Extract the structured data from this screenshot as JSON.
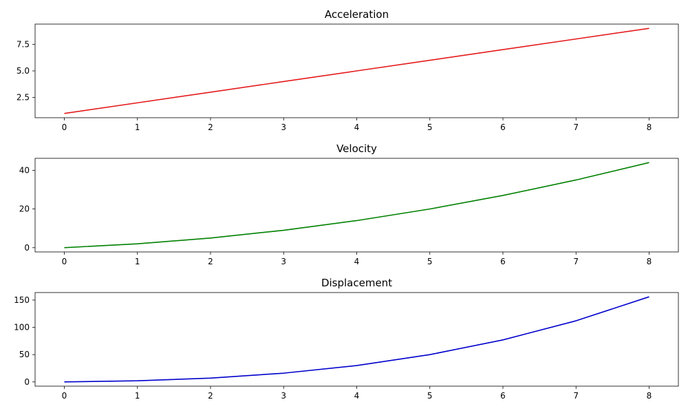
{
  "chart_data": [
    {
      "type": "line",
      "title": "Acceleration",
      "xlabel": "",
      "ylabel": "",
      "x": [
        0,
        1,
        2,
        3,
        4,
        5,
        6,
        7,
        8
      ],
      "series": [
        {
          "color": "#e41a1c",
          "values": [
            1,
            2,
            3,
            4,
            5,
            6,
            7,
            8,
            9
          ]
        }
      ],
      "xlim": [
        -0.4,
        8.4
      ],
      "ylim": [
        0.6,
        9.4
      ],
      "xticks": [
        0,
        1,
        2,
        3,
        4,
        5,
        6,
        7,
        8
      ],
      "xtick_labels": [
        "0",
        "1",
        "2",
        "3",
        "4",
        "5",
        "6",
        "7",
        "8"
      ],
      "yticks": [
        2.5,
        5.0,
        7.5
      ],
      "ytick_labels": [
        "2.5",
        "5.0",
        "7.5"
      ],
      "grid": false
    },
    {
      "type": "line",
      "title": "Velocity",
      "xlabel": "",
      "ylabel": "",
      "x": [
        0,
        1,
        2,
        3,
        4,
        5,
        6,
        7,
        8
      ],
      "series": [
        {
          "color": "#008000",
          "values": [
            0,
            2,
            5,
            9,
            14,
            20,
            27,
            35,
            44
          ]
        }
      ],
      "xlim": [
        -0.4,
        8.4
      ],
      "ylim": [
        -2.2,
        46.2
      ],
      "xticks": [
        0,
        1,
        2,
        3,
        4,
        5,
        6,
        7,
        8
      ],
      "xtick_labels": [
        "0",
        "1",
        "2",
        "3",
        "4",
        "5",
        "6",
        "7",
        "8"
      ],
      "yticks": [
        0,
        20,
        40
      ],
      "ytick_labels": [
        "0",
        "20",
        "40"
      ],
      "grid": false
    },
    {
      "type": "line",
      "title": "Displacement",
      "xlabel": "",
      "ylabel": "",
      "x": [
        0,
        1,
        2,
        3,
        4,
        5,
        6,
        7,
        8
      ],
      "series": [
        {
          "color": "#0000cc",
          "values": [
            0,
            2,
            7,
            16,
            30,
            50,
            77,
            112,
            156
          ]
        }
      ],
      "xlim": [
        -0.4,
        8.4
      ],
      "ylim": [
        -7.8,
        163.8
      ],
      "xticks": [
        0,
        1,
        2,
        3,
        4,
        5,
        6,
        7,
        8
      ],
      "xtick_labels": [
        "0",
        "1",
        "2",
        "3",
        "4",
        "5",
        "6",
        "7",
        "8"
      ],
      "yticks": [
        0,
        50,
        100,
        150
      ],
      "ytick_labels": [
        "0",
        "50",
        "100",
        "150"
      ],
      "grid": false
    }
  ]
}
